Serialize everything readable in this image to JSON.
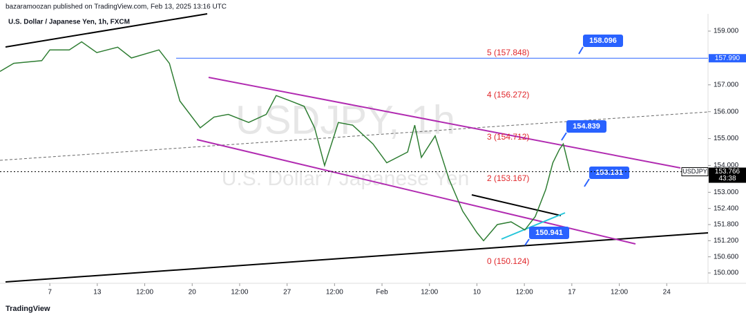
{
  "chart_data": {
    "type": "line",
    "published": "bazaramoozan published on TradingView.com, Feb 13, 2025 13:16 UTC",
    "title": "U.S. Dollar / Japanese Yen, 1h, FXCM",
    "watermark": [
      "USDJPY, 1h",
      "U.S. Dollar / Japanese Yen"
    ],
    "brand": "TradingView",
    "x": [
      -1.05,
      -0.76,
      -0.17,
      0,
      0.41,
      0.67,
      0.99,
      1.43,
      1.72,
      2.3,
      2.52,
      2.74,
      3.17,
      3.46,
      3.76,
      4.19,
      4.56,
      4.77,
      5.07,
      5.36,
      5.58,
      5.79,
      6.08,
      6.38,
      6.81,
      7.1,
      7.54,
      7.69,
      7.83,
      8.12,
      8.41,
      8.7,
      9.0,
      9.14,
      9.43,
      9.72,
      10.01,
      10.23,
      10.45,
      10.6,
      10.74,
      10.82,
      10.96
    ],
    "series": [
      {
        "name": "USDJPY",
        "color": "#2e7d32",
        "values": [
          157.5,
          157.8,
          157.9,
          158.3,
          158.3,
          158.6,
          158.2,
          158.4,
          158.0,
          158.3,
          157.8,
          156.4,
          155.4,
          155.8,
          155.9,
          155.6,
          155.9,
          156.6,
          156.4,
          156.2,
          155.4,
          154.0,
          155.6,
          155.5,
          154.8,
          154.1,
          154.5,
          155.5,
          154.3,
          155.1,
          153.5,
          152.3,
          151.5,
          151.2,
          151.8,
          151.9,
          151.6,
          152.1,
          153.1,
          154.1,
          154.6,
          154.8,
          153.8
        ]
      }
    ],
    "xlim": [
      -1.05,
      13.87
    ],
    "xticks": [
      {
        "value": 0,
        "label": "7"
      },
      {
        "value": 1,
        "label": "13"
      },
      {
        "value": 2,
        "label": "12:00"
      },
      {
        "value": 3,
        "label": "20"
      },
      {
        "value": 4,
        "label": "12:00"
      },
      {
        "value": 5,
        "label": "27"
      },
      {
        "value": 6,
        "label": "12:00"
      },
      {
        "value": 7,
        "label": "Feb"
      },
      {
        "value": 8,
        "label": "12:00"
      },
      {
        "value": 9,
        "label": "10"
      },
      {
        "value": 10,
        "label": "12:00"
      },
      {
        "value": 11,
        "label": "17"
      },
      {
        "value": 12,
        "label": "12:00"
      },
      {
        "value": 13,
        "label": "24"
      }
    ],
    "ylim": [
      149.614,
      160.157
    ],
    "yticks": [
      {
        "value": 159,
        "label": "159.000"
      },
      {
        "value": 157,
        "label": "157.000"
      },
      {
        "value": 156,
        "label": "156.000"
      },
      {
        "value": 155,
        "label": "155.000"
      },
      {
        "value": 154,
        "label": "154.000"
      },
      {
        "value": 153,
        "label": "153.000"
      },
      {
        "value": 152.4,
        "label": "152.400"
      },
      {
        "value": 151.8,
        "label": "151.800"
      },
      {
        "value": 151.2,
        "label": "151.200"
      },
      {
        "value": 150.6,
        "label": "150.600"
      },
      {
        "value": 150,
        "label": "150.000"
      }
    ],
    "price_lines": [
      {
        "value": 157.99,
        "label": "157.990",
        "color": "#2962ff"
      },
      {
        "value": 153.766,
        "label": "153.766",
        "symbol": "USDJPY",
        "countdown": "43:38",
        "color": "#000000"
      }
    ],
    "fib_labels": [
      "5 (157.848)",
      "4 (156.272)",
      "3 (154.712)",
      "2 (153.167)",
      "0 (150.124)"
    ],
    "callouts": [
      "158.096",
      "154.839",
      "153.131",
      "150.941"
    ]
  }
}
